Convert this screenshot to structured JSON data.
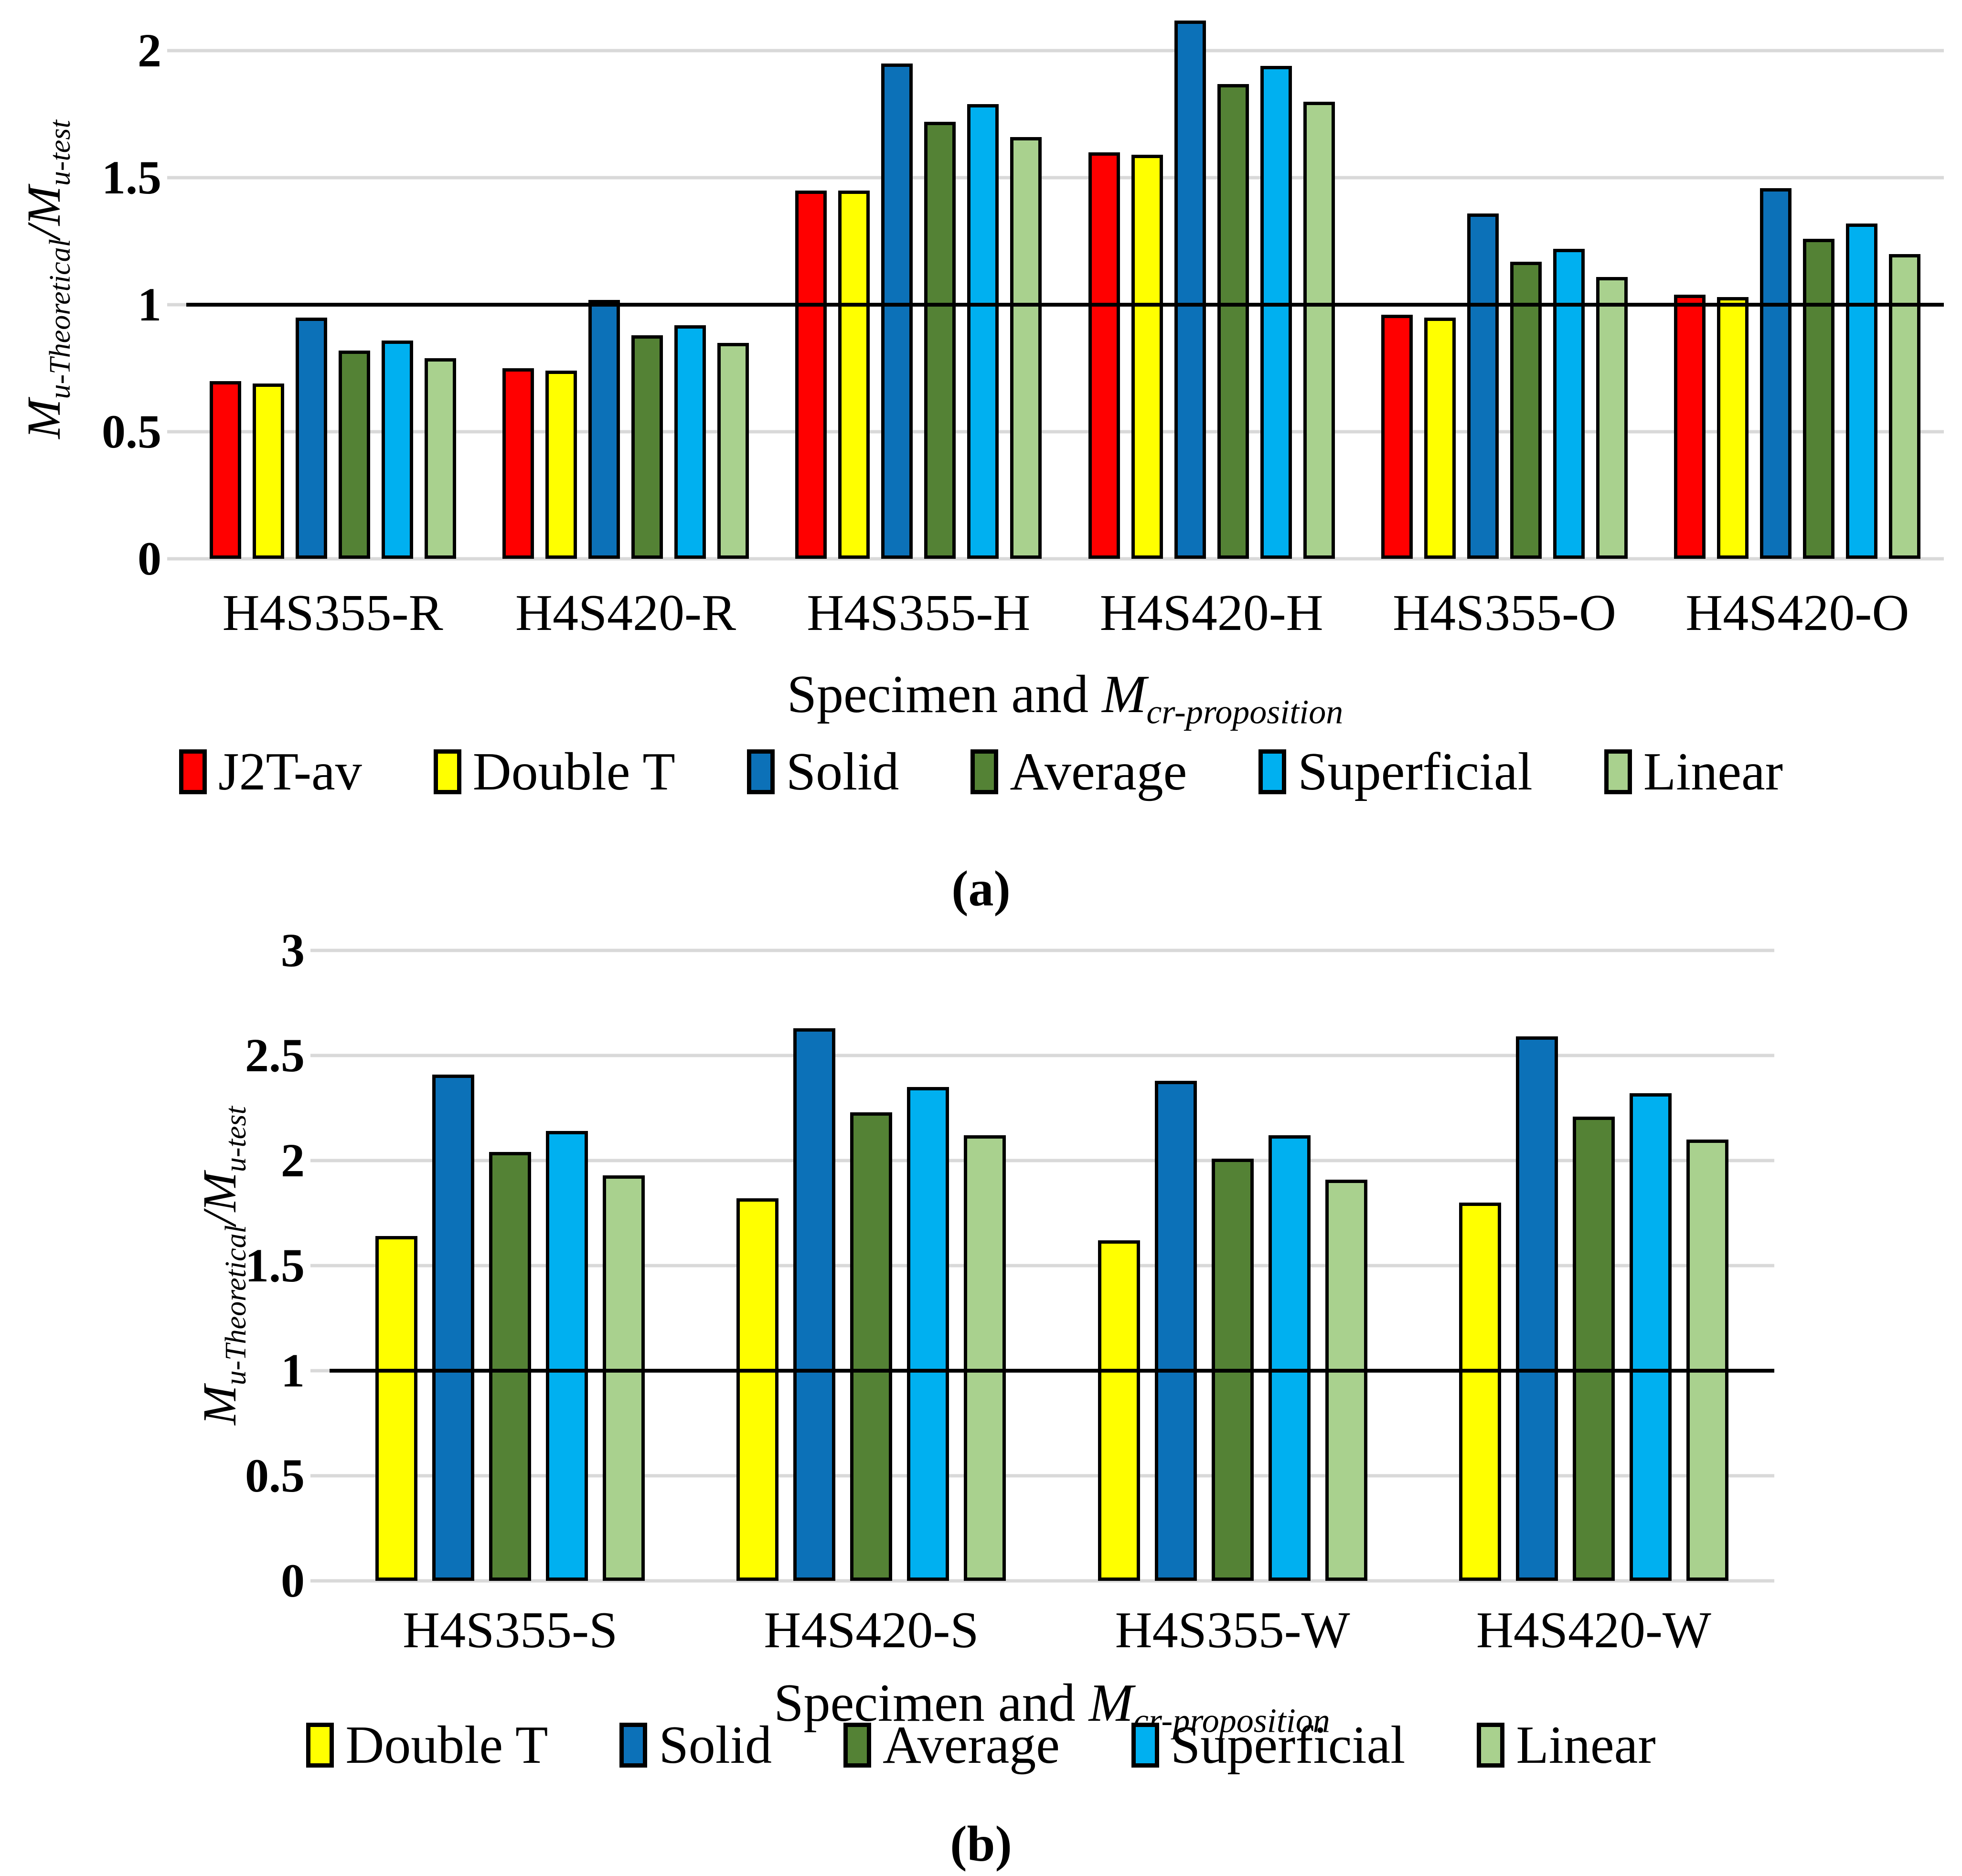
{
  "colors": {
    "J2T-av": "#ff0000",
    "Double T": "#ffff00",
    "Solid": "#0c71b8",
    "Average": "#548235",
    "Superficial": "#00b0f0",
    "Linear": "#a9d18e"
  },
  "gridline_color": "#d9d9d9",
  "axes": {
    "y": {
      "m1": "M",
      "sub1": "u-Theoretical",
      "slash": "/",
      "m2": "M",
      "sub2": "u-test"
    },
    "x": {
      "prefix": "Specimen and ",
      "m": "M",
      "sub": "cr-proposition"
    }
  },
  "chart_data": [
    {
      "type": "bar",
      "caption": "(a)",
      "title": "",
      "xlabel": "Specimen and Mcr-proposition",
      "ylabel": "Mu-Theoretical/Mu-test",
      "categories": [
        "H4S355-R",
        "H4S420-R",
        "H4S355-H",
        "H4S420-H",
        "H4S355-O",
        "H4S420-O"
      ],
      "series": [
        {
          "name": "J2T-av",
          "values": [
            0.7,
            0.75,
            1.45,
            1.6,
            0.96,
            1.04
          ]
        },
        {
          "name": "Double T",
          "values": [
            0.69,
            0.74,
            1.45,
            1.59,
            0.95,
            1.03
          ]
        },
        {
          "name": "Solid",
          "values": [
            0.95,
            1.02,
            1.95,
            2.12,
            1.36,
            1.46
          ]
        },
        {
          "name": "Average",
          "values": [
            0.82,
            0.88,
            1.72,
            1.87,
            1.17,
            1.26
          ]
        },
        {
          "name": "Superficial",
          "values": [
            0.86,
            0.92,
            1.79,
            1.94,
            1.22,
            1.32
          ]
        },
        {
          "name": "Linear",
          "values": [
            0.79,
            0.85,
            1.66,
            1.8,
            1.11,
            1.2
          ]
        }
      ],
      "ylim": [
        0,
        2.2
      ],
      "yticks": [
        "0",
        "0.5",
        "1",
        "1.5",
        "2"
      ],
      "ref_line": 1,
      "grid": true,
      "legend_position": "bottom"
    },
    {
      "type": "bar",
      "caption": "(b)",
      "title": "",
      "xlabel": "Specimen and Mcr-proposition",
      "ylabel": "Mu-Theoretical/Mu-test",
      "categories": [
        "H4S355-S",
        "H4S420-S",
        "H4S355-W",
        "H4S420-W"
      ],
      "series": [
        {
          "name": "Double T",
          "values": [
            1.64,
            1.82,
            1.62,
            1.8
          ]
        },
        {
          "name": "Solid",
          "values": [
            2.41,
            2.63,
            2.38,
            2.59
          ]
        },
        {
          "name": "Average",
          "values": [
            2.04,
            2.23,
            2.01,
            2.21
          ]
        },
        {
          "name": "Superficial",
          "values": [
            2.14,
            2.35,
            2.12,
            2.32
          ]
        },
        {
          "name": "Linear",
          "values": [
            1.93,
            2.12,
            1.91,
            2.1
          ]
        }
      ],
      "ylim": [
        0,
        3
      ],
      "yticks": [
        "0",
        "0.5",
        "1",
        "1.5",
        "2",
        "2.5",
        "3"
      ],
      "ref_line": 1,
      "grid": true,
      "legend_position": "bottom"
    }
  ]
}
